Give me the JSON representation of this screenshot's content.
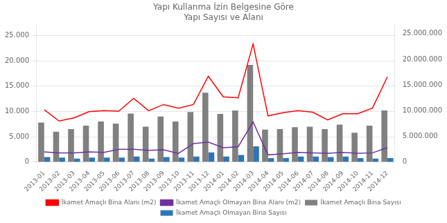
{
  "chart_data": {
    "type": "bar",
    "title": "Yapı Kullanma İzin Belgesine Göre\nYapı Sayısı ve Alanı",
    "categories": [
      "2013-01",
      "2013-02",
      "2013-03",
      "2013-04",
      "2013-05",
      "2013-06",
      "2013-07",
      "2013-08",
      "2013-09",
      "2013-10",
      "2013-11",
      "2013-12",
      "2014-01",
      "2014-02",
      "2014-03",
      "2014-04",
      "2014-05",
      "2014-06",
      "2014-07",
      "2014-08",
      "2014-09",
      "2014-10",
      "2014-11",
      "2014-12"
    ],
    "series": [
      {
        "name": "İkamet Amaçlı Bina Sayısı",
        "type": "bar",
        "color": "#808080",
        "values": [
          7800,
          6000,
          6500,
          7200,
          8000,
          7600,
          9600,
          7000,
          9000,
          8000,
          9900,
          13700,
          9500,
          10200,
          19200,
          6400,
          6500,
          6900,
          7000,
          6500,
          7400,
          5800,
          7200,
          10200
        ]
      },
      {
        "name": "İkamet Amaçlı Olmayan Bina Sayısı",
        "type": "bar",
        "color": "#2E75B6",
        "values": [
          1000,
          900,
          700,
          900,
          900,
          900,
          1100,
          700,
          1000,
          900,
          1100,
          1900,
          1100,
          1400,
          3100,
          800,
          800,
          1100,
          1100,
          1000,
          1100,
          800,
          700,
          800
        ]
      },
      {
        "name": "İkamet Amaçlı Bina Alanı (m2)",
        "type": "line",
        "axis": "y2",
        "color": "#FF0000",
        "values": [
          10200000,
          8000000,
          8600000,
          9800000,
          10000000,
          9900000,
          12400000,
          10000000,
          11200000,
          10500000,
          11200000,
          16700000,
          12700000,
          12500000,
          23000000,
          9000000,
          9600000,
          10000000,
          9700000,
          8200000,
          9400000,
          9400000,
          10500000,
          16600000
        ]
      },
      {
        "name": "İkamet Amaçlı Olmayan Bina Alanı (m2)",
        "type": "line",
        "axis": "y2",
        "color": "#7030A0",
        "values": [
          2000000,
          1800000,
          1800000,
          2000000,
          1900000,
          2500000,
          2500000,
          2300000,
          2400000,
          1700000,
          3600000,
          3900000,
          2800000,
          3000000,
          7800000,
          1400000,
          1600000,
          1900000,
          1800000,
          1700000,
          1900000,
          1700000,
          1800000,
          2800000
        ]
      }
    ],
    "ylim": [
      0,
      27000
    ],
    "yticks": [
      0,
      {
        "value": 5000,
        "label": "5.000"
      },
      {
        "value": 10000,
        "label": "10.000"
      },
      {
        "value": 15000,
        "label": "15.000"
      },
      {
        "value": 20000,
        "label": "20.000"
      },
      {
        "value": 25000,
        "label": "25.000"
      }
    ],
    "y2lim": [
      0,
      26600000
    ],
    "y2ticks": [
      0,
      {
        "value": 5000000,
        "label": "5.000.000"
      },
      {
        "value": 10000000,
        "label": "10.000.000"
      },
      {
        "value": 15000000,
        "label": "15.000.000"
      },
      {
        "value": 20000000,
        "label": "20.000.000"
      },
      {
        "value": 25000000,
        "label": "25.000.000"
      }
    ],
    "grid": true,
    "legend": "bottom"
  }
}
